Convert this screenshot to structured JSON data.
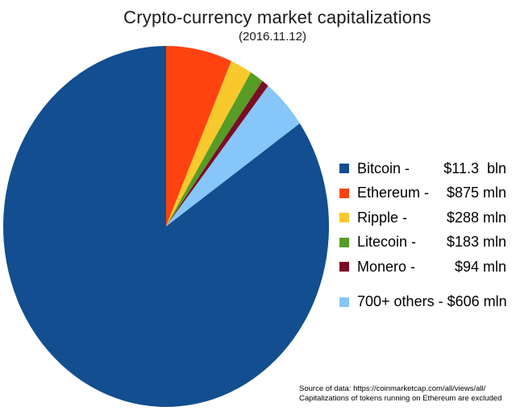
{
  "chart_data": {
    "type": "pie",
    "title": "Crypto-currency market capitalizations",
    "subtitle": "(2016.11.12)",
    "categories": [
      "Bitcoin",
      "Ethereum",
      "Ripple",
      "Litecoin",
      "Monero",
      "700+ others"
    ],
    "values_mln_usd": [
      11300,
      875,
      288,
      183,
      94,
      606
    ],
    "value_labels": [
      "$11.3  bln",
      "$875 mln",
      "$288 mln",
      "$183 mln",
      "$94 mln",
      "$606 mln"
    ],
    "colors": [
      "#124E90",
      "#FF4310",
      "#F8C92D",
      "#579C27",
      "#7A0D26",
      "#87C6F8"
    ],
    "legend_position": "right",
    "start_angle": "12 o'clock",
    "direction": "clockwise",
    "slice_draw_order": [
      1,
      2,
      3,
      4,
      5,
      0
    ]
  },
  "legend": {
    "items": [
      {
        "name": "Bitcoin -",
        "value": "$11.3  bln",
        "single_line": false
      },
      {
        "name": "Ethereum -",
        "value": "$875 mln",
        "single_line": false
      },
      {
        "name": "Ripple -",
        "value": "$288 mln",
        "single_line": false
      },
      {
        "name": "Litecoin -",
        "value": "$183 mln",
        "single_line": false
      },
      {
        "name": "Monero -",
        "value": "$94 mln",
        "single_line": false
      },
      {
        "name": "700+ others - $606 mln",
        "value": "",
        "single_line": true
      }
    ]
  },
  "source": {
    "line1": "Source of data: https://coinmarketcap.com/all/views/all/",
    "line2": "Capitalizations of tokens running on Ethereum are excluded"
  }
}
